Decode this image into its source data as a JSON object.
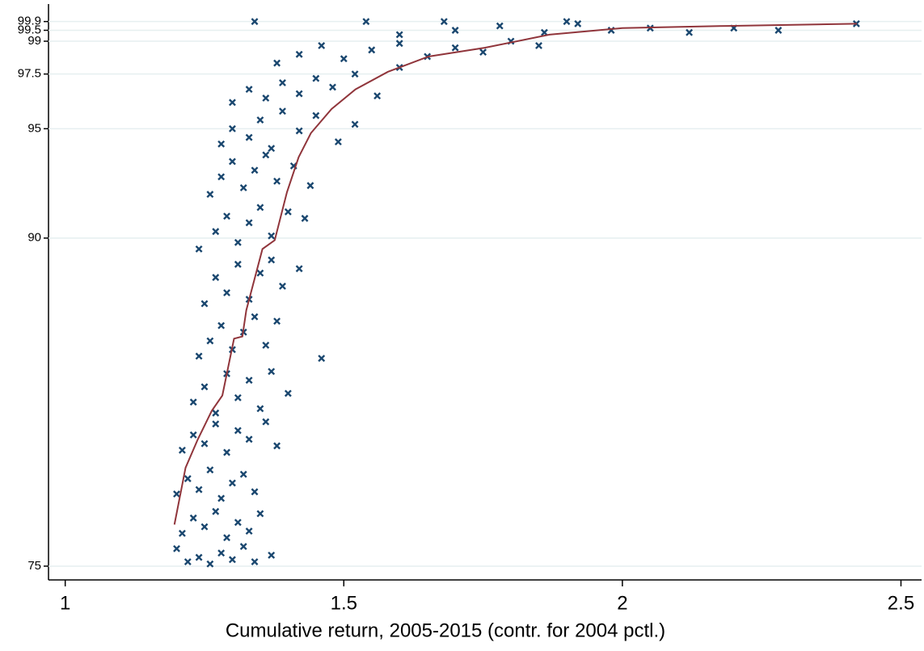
{
  "chart_data": {
    "type": "scatter",
    "xlabel": "Cumulative return, 2005-2015 (contr. for 2004 pctl.)",
    "xlim": [
      0.97,
      2.537
    ],
    "xticks": [
      1,
      1.5,
      2,
      2.5
    ],
    "ylim": [
      74.37,
      100.7
    ],
    "yticks": [
      75,
      90,
      95,
      97.5,
      99,
      99.5,
      99.9
    ],
    "grid": true,
    "series": [
      {
        "type": "scatter",
        "marker": "x",
        "color": "#1a476f",
        "x": [
          1.2,
          1.22,
          1.24,
          1.26,
          1.28,
          1.3,
          1.32,
          1.34,
          1.37,
          1.21,
          1.23,
          1.25,
          1.27,
          1.29,
          1.31,
          1.33,
          1.35,
          1.2,
          1.22,
          1.24,
          1.26,
          1.28,
          1.3,
          1.32,
          1.34,
          1.21,
          1.23,
          1.25,
          1.27,
          1.29,
          1.31,
          1.33,
          1.36,
          1.38,
          1.23,
          1.25,
          1.27,
          1.29,
          1.31,
          1.33,
          1.35,
          1.37,
          1.4,
          1.24,
          1.26,
          1.28,
          1.3,
          1.32,
          1.34,
          1.36,
          1.38,
          1.46,
          1.25,
          1.27,
          1.29,
          1.31,
          1.33,
          1.35,
          1.37,
          1.39,
          1.42,
          1.24,
          1.27,
          1.29,
          1.31,
          1.33,
          1.35,
          1.37,
          1.4,
          1.43,
          1.26,
          1.28,
          1.3,
          1.32,
          1.34,
          1.36,
          1.38,
          1.41,
          1.44,
          1.28,
          1.3,
          1.33,
          1.35,
          1.37,
          1.39,
          1.42,
          1.45,
          1.49,
          1.52,
          1.3,
          1.33,
          1.36,
          1.39,
          1.42,
          1.45,
          1.48,
          1.52,
          1.56,
          1.6,
          1.38,
          1.42,
          1.46,
          1.5,
          1.55,
          1.6,
          1.65,
          1.7,
          1.75,
          1.8,
          1.85,
          1.6,
          1.7,
          1.78,
          1.86,
          1.92,
          1.98,
          2.05,
          2.12,
          2.2,
          2.28,
          2.42,
          1.34,
          1.54,
          1.68,
          1.9
        ],
        "values": [
          75.8,
          75.2,
          75.4,
          75.1,
          75.6,
          75.3,
          75.9,
          75.2,
          75.5,
          76.5,
          77.2,
          76.8,
          77.5,
          76.3,
          77.0,
          76.6,
          77.4,
          78.3,
          79.0,
          78.5,
          79.4,
          78.1,
          78.8,
          79.2,
          78.4,
          80.3,
          81.0,
          80.6,
          81.5,
          80.2,
          81.2,
          80.8,
          81.6,
          80.5,
          82.5,
          83.2,
          82.0,
          83.8,
          82.7,
          83.5,
          82.2,
          83.9,
          82.9,
          84.6,
          85.3,
          86.0,
          84.9,
          85.7,
          86.4,
          85.1,
          86.2,
          84.5,
          87.0,
          88.2,
          87.5,
          88.8,
          87.2,
          88.4,
          89.0,
          87.8,
          88.6,
          89.5,
          90.3,
          91.0,
          89.8,
          90.7,
          91.4,
          90.1,
          91.2,
          90.9,
          92.0,
          92.8,
          93.5,
          92.3,
          93.1,
          93.8,
          92.6,
          93.3,
          92.4,
          94.3,
          95.0,
          94.6,
          95.4,
          94.1,
          95.8,
          94.9,
          95.6,
          94.4,
          95.2,
          96.2,
          96.8,
          96.4,
          97.1,
          96.6,
          97.3,
          96.9,
          97.5,
          96.5,
          97.8,
          98.0,
          98.4,
          98.8,
          98.2,
          98.6,
          98.9,
          98.3,
          98.7,
          98.5,
          99.0,
          98.8,
          99.3,
          99.5,
          99.7,
          99.4,
          99.8,
          99.5,
          99.6,
          99.4,
          99.6,
          99.5,
          99.8,
          99.9,
          99.9,
          99.9,
          99.9
        ]
      },
      {
        "type": "line",
        "color": "#90353b",
        "x": [
          1.196,
          1.216,
          1.238,
          1.263,
          1.282,
          1.303,
          1.318,
          1.325,
          1.354,
          1.376,
          1.398,
          1.419,
          1.441,
          1.478,
          1.521,
          1.579,
          1.652,
          1.753,
          1.869,
          2.0,
          2.189,
          2.421
        ],
        "values": [
          76.9,
          79.5,
          80.8,
          82.1,
          82.8,
          85.4,
          85.5,
          86.7,
          89.5,
          89.9,
          92.1,
          93.7,
          94.8,
          95.9,
          96.8,
          97.6,
          98.3,
          98.7,
          99.3,
          99.6,
          99.7,
          99.8
        ]
      }
    ]
  }
}
